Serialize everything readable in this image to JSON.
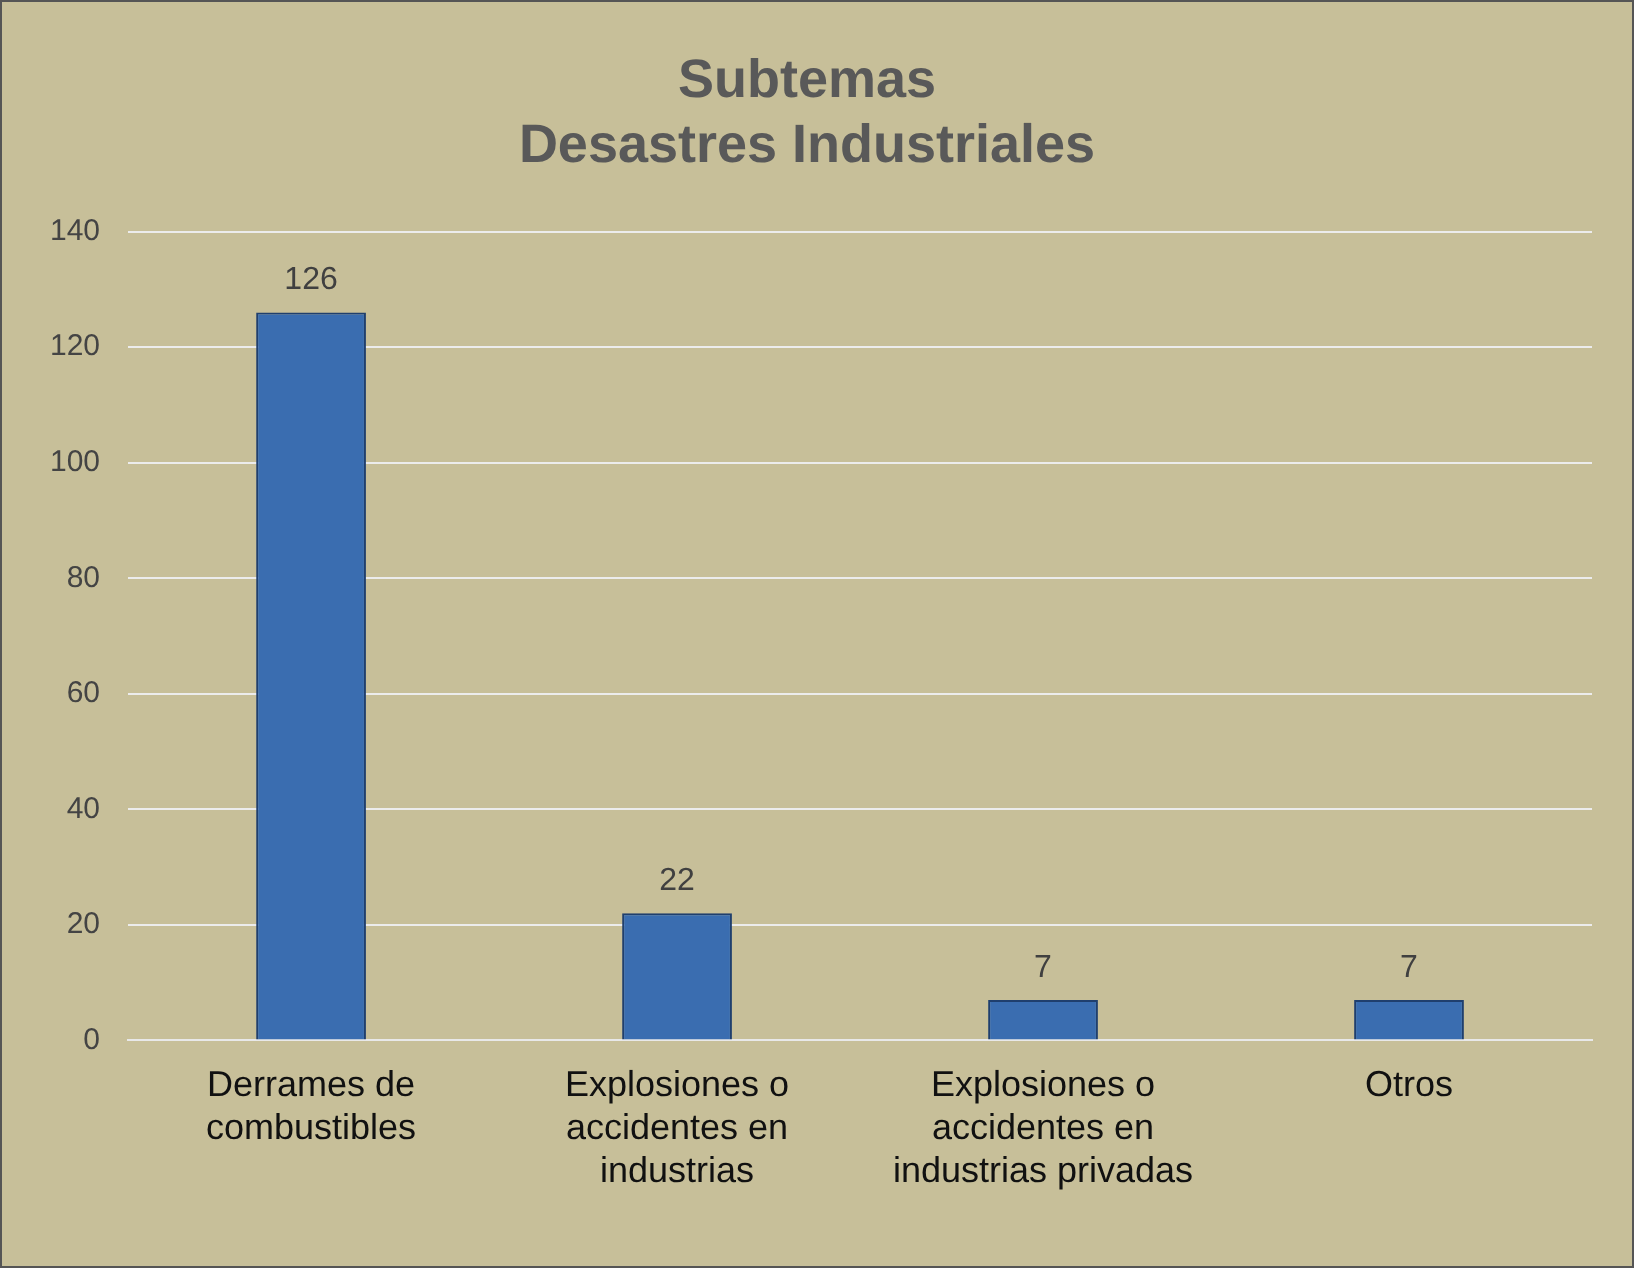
{
  "chart_data": {
    "type": "bar",
    "title": "Subtemas\nDesastres Industriales",
    "categories": [
      "Derrames de combustibles",
      "Explosiones o accidentes en industrias",
      "Explosiones o accidentes en industrias privadas",
      "Otros"
    ],
    "values": [
      126,
      22,
      7,
      7
    ],
    "color": "#3a6db0",
    "ylim": [
      0,
      140
    ],
    "yticks": [
      0,
      20,
      40,
      60,
      80,
      100,
      120,
      140
    ],
    "grid": "y",
    "data_labels": true,
    "legend": false
  }
}
